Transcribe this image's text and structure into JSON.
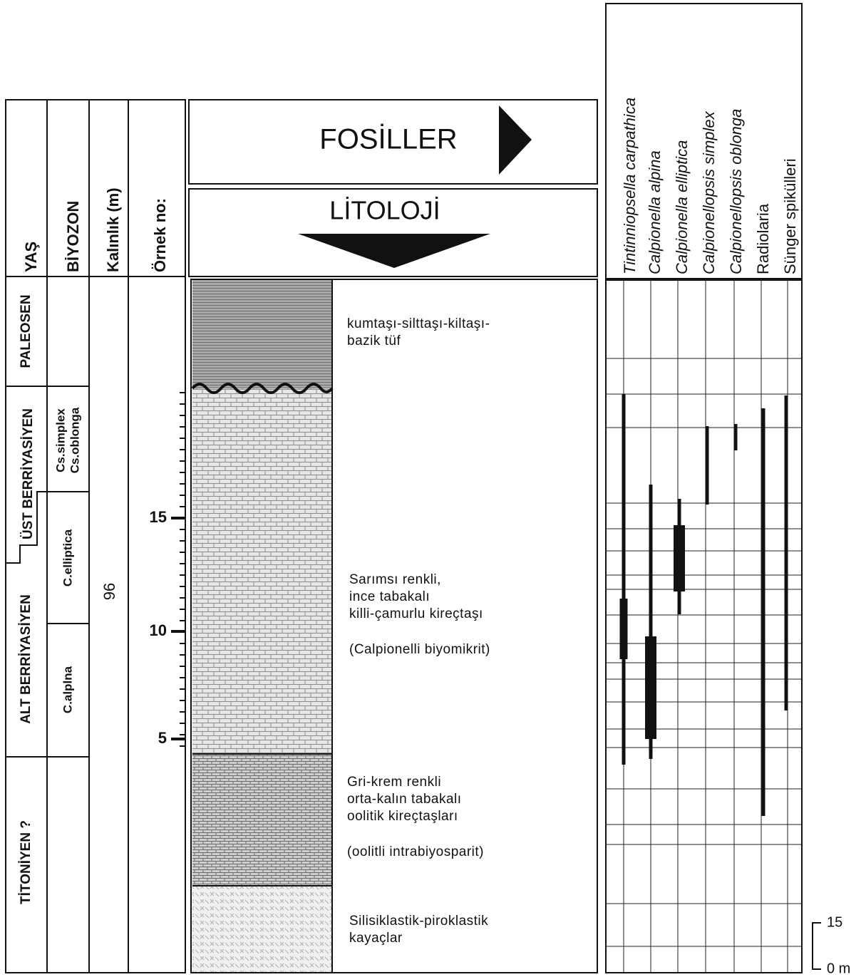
{
  "columns": {
    "age": "YAŞ",
    "biozone": "BİYOZON",
    "thickness": "Kalınlık (m)",
    "sample": "Örnek no:"
  },
  "headers": {
    "fossils": "FOSİLLER",
    "lithology": "LİTOLOJİ"
  },
  "ages": [
    "PALEOSEN",
    "ÜST BERRİYASİYEN",
    "ALT BERRİYASİYEN",
    "TİTONİYEN ?"
  ],
  "biozones": [
    {
      "lines": [
        "Cs.simplex",
        "Cs.oblonga"
      ]
    },
    {
      "lines": [
        "C.elliptica"
      ]
    },
    {
      "lines": [
        "C.alplna"
      ]
    }
  ],
  "thickness": "96",
  "sample_ticks": [
    "15",
    "10",
    "5"
  ],
  "lithology_units": [
    {
      "lines": [
        "kumtaşı-silttaşı-kiltaşı-",
        "bazik tüf"
      ]
    },
    {
      "lines": [
        "Sarımsı renkli,",
        "ince tabakalı",
        "killi-çamurlu kireçtaşı"
      ],
      "note": "(Calpionelli biyomikrit)"
    },
    {
      "lines": [
        "Gri-krem renkli",
        "orta-kalın tabakalı",
        "oolitik kireçtaşları"
      ],
      "note": "(oolitli intrabiyosparit)"
    },
    {
      "lines": [
        "Silisiklastik-piroklastik",
        "kayaçlar"
      ]
    }
  ],
  "fossils": [
    "Tintinniopsella carpathica",
    "Calpionella alpina",
    "Calpionella elliptica",
    "Calpionellopsis simplex",
    "Calpionellopsis oblonga",
    "Radiolaria",
    "Sünger spikülleri"
  ],
  "scale": [
    "15",
    "0 m"
  ]
}
